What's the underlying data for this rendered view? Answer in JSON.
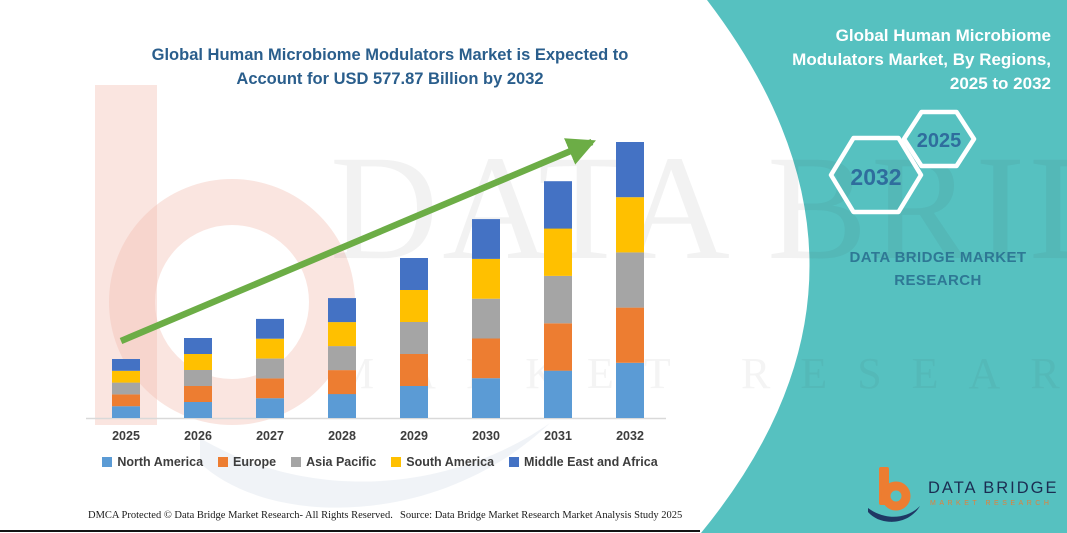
{
  "title": "Global Human Microbiome Modulators Market is Expected to Account for USD 577.87 Billion by 2032",
  "chart_data": {
    "type": "bar",
    "stacked": true,
    "unit": "USD Billion",
    "categories": [
      "2025",
      "2026",
      "2027",
      "2028",
      "2029",
      "2030",
      "2031",
      "2032"
    ],
    "series": [
      {
        "name": "North America",
        "color": "#5b9bd5",
        "values": [
          24.7,
          33.5,
          41.5,
          50.2,
          67.0,
          83.3,
          99.2,
          115.6
        ]
      },
      {
        "name": "Europe",
        "color": "#ed7d31",
        "values": [
          24.7,
          33.5,
          41.5,
          50.2,
          67.0,
          83.3,
          99.2,
          115.6
        ]
      },
      {
        "name": "Asia Pacific",
        "color": "#a5a5a5",
        "values": [
          24.7,
          33.5,
          41.5,
          50.2,
          67.0,
          83.3,
          99.2,
          115.6
        ]
      },
      {
        "name": "South America",
        "color": "#ffc000",
        "values": [
          24.7,
          33.5,
          41.5,
          50.2,
          67.0,
          83.3,
          99.2,
          115.6
        ]
      },
      {
        "name": "Middle East and Africa",
        "color": "#4472c4",
        "values": [
          24.7,
          33.5,
          41.5,
          50.2,
          67.0,
          83.3,
          99.2,
          115.6
        ]
      }
    ],
    "totals_estimated": [
      123.5,
      167.5,
      207.5,
      251.0,
      335.0,
      416.5,
      496.0,
      577.87
    ],
    "title": "Global Human Microbiome Modulators Market is Expected to Account for USD 577.87 Billion by 2032",
    "xlabel": "",
    "ylabel": "",
    "ylim": [
      0,
      600
    ],
    "gridlines": false,
    "legend_position": "bottom",
    "annotations": [
      "upward green trend arrow"
    ],
    "accent_colors": {
      "trend_arrow": "#6cad46",
      "axis_line": "#d9d9d9"
    }
  },
  "side_panel": {
    "heading": "Global Human Microbiome Modulators Market, By Regions, 2025 to 2032",
    "hexagon_back_label": "2032",
    "hexagon_front_label": "2025",
    "brand": "DATA BRIDGE MARKET RESEARCH",
    "background_color": "#56c1c0"
  },
  "watermark": {
    "line1": "DATA BRIDGE",
    "line2": "MARKET RESEARCH"
  },
  "brand_logo": {
    "name": "DATA BRIDGE",
    "tagline": "MARKET RESEARCH"
  },
  "footer": {
    "dmca": "DMCA Protected © Data Bridge Market Research-  All Rights Reserved.",
    "source": "Source: Data Bridge Market Research  Market Analysis Study 2025"
  }
}
